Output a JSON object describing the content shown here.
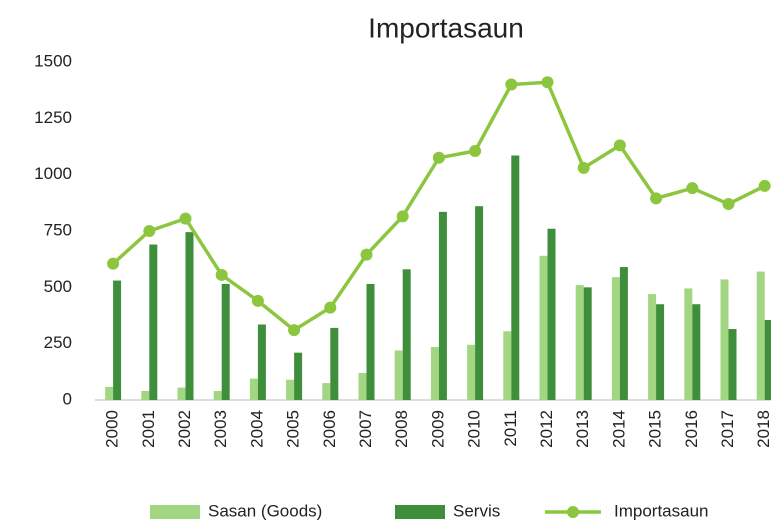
{
  "chart_data": {
    "type": "bar",
    "title": "Importasaun",
    "categories": [
      "2000",
      "2001",
      "2002",
      "2003",
      "2004",
      "2005",
      "2006",
      "2007",
      "2008",
      "2009",
      "2010",
      "2011",
      "2012",
      "2013",
      "2014",
      "2015",
      "2016",
      "2017",
      "2018"
    ],
    "series": [
      {
        "name": "Sasan (Goods)",
        "color": "#a3d683",
        "values": [
          58,
          40,
          55,
          40,
          95,
          90,
          75,
          120,
          220,
          235,
          245,
          305,
          640,
          510,
          545,
          470,
          495,
          535,
          570
        ]
      },
      {
        "name": "Servis",
        "color": "#3e8e3c",
        "values": [
          530,
          690,
          745,
          515,
          335,
          210,
          320,
          515,
          580,
          835,
          860,
          1085,
          760,
          500,
          590,
          425,
          425,
          315,
          355
        ]
      },
      {
        "name": "Importasaun",
        "color": "#8cc63f",
        "type": "line",
        "values": [
          605,
          750,
          805,
          555,
          440,
          310,
          410,
          645,
          815,
          1075,
          1105,
          1400,
          1410,
          1030,
          1130,
          895,
          940,
          870,
          950
        ]
      }
    ],
    "ylim": [
      0,
      1500
    ],
    "yticks": [
      0,
      250,
      500,
      750,
      1000,
      1250,
      1500
    ],
    "grid": false,
    "legend": "bottom"
  }
}
